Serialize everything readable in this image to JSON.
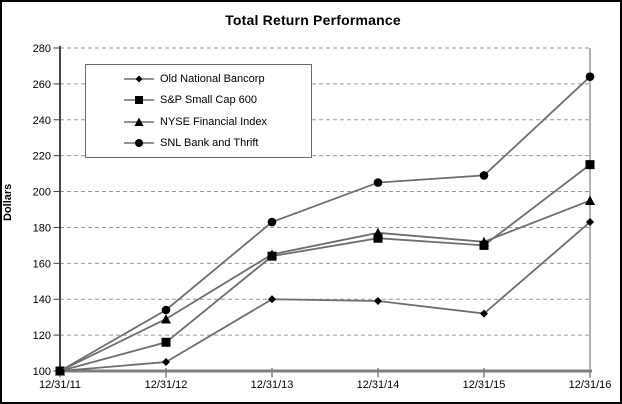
{
  "chart_data": {
    "type": "line",
    "title": "Total Return Performance",
    "xlabel": "",
    "ylabel": "Dollars",
    "categories": [
      "12/31/11",
      "12/31/12",
      "12/31/13",
      "12/31/14",
      "12/31/15",
      "12/31/16"
    ],
    "series": [
      {
        "name": "Old National Bancorp",
        "marker": "diamond",
        "values": [
          100,
          105,
          140,
          139,
          132,
          183
        ]
      },
      {
        "name": "S&P Small Cap 600",
        "marker": "square",
        "values": [
          100,
          116,
          164,
          174,
          170,
          215
        ]
      },
      {
        "name": "NYSE Financial Index",
        "marker": "triangle",
        "values": [
          100,
          129,
          165,
          177,
          172,
          195
        ]
      },
      {
        "name": "SNL Bank and Thrift",
        "marker": "circle",
        "values": [
          100,
          134,
          183,
          205,
          209,
          264
        ]
      }
    ],
    "ylim": [
      100,
      280
    ],
    "ytick_step": 20,
    "grid": true,
    "gridline_style": "dashed",
    "legend_position": "upper-left-inside"
  },
  "colors": {
    "background": "#ffffff",
    "frame_border": "#000000",
    "series_line": "#6e6e6e",
    "marker_fill": "#000000",
    "gridline": "#999999",
    "y_axis": "#333333",
    "x_axis": "#7f7f7f",
    "plot_right_border": "#7f7f7f",
    "tick": "#404040",
    "text": "#000000"
  }
}
